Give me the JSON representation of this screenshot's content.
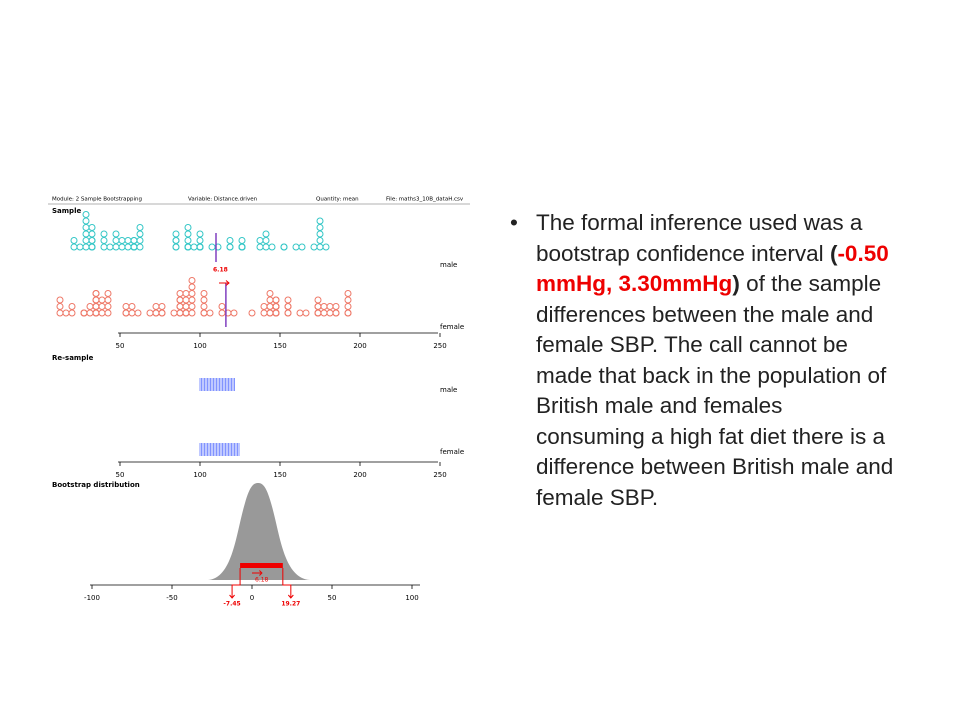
{
  "screenshot": {
    "header": [
      "Module: 2 Sample Bootstrapping",
      "Variable: Distance.driven",
      "Quantity: mean",
      "File: maths3_10B_dataH.csv"
    ],
    "sample_title": "Sample",
    "resample_title": "Re-sample",
    "bootstrap_title": "Bootstrap distribution",
    "groups": [
      "male",
      "female"
    ],
    "sample_ticks": [
      50,
      100,
      150,
      200,
      250
    ],
    "difference": 6.18,
    "bootstrap_ticks": [
      -100,
      -50,
      0,
      50,
      100
    ],
    "ci": [
      -7.45,
      19.27
    ]
  },
  "bullet": [
    "The formal inference used was a bootstrap confidence interval ",
    "(",
    "-0.50 mmHg, 3.30mmHg",
    ")",
    " of the sample differences between the male and female SBP. The call cannot be made that back in the population of British male and females consuming a high fat diet there is a difference between British male and female SBP."
  ]
}
